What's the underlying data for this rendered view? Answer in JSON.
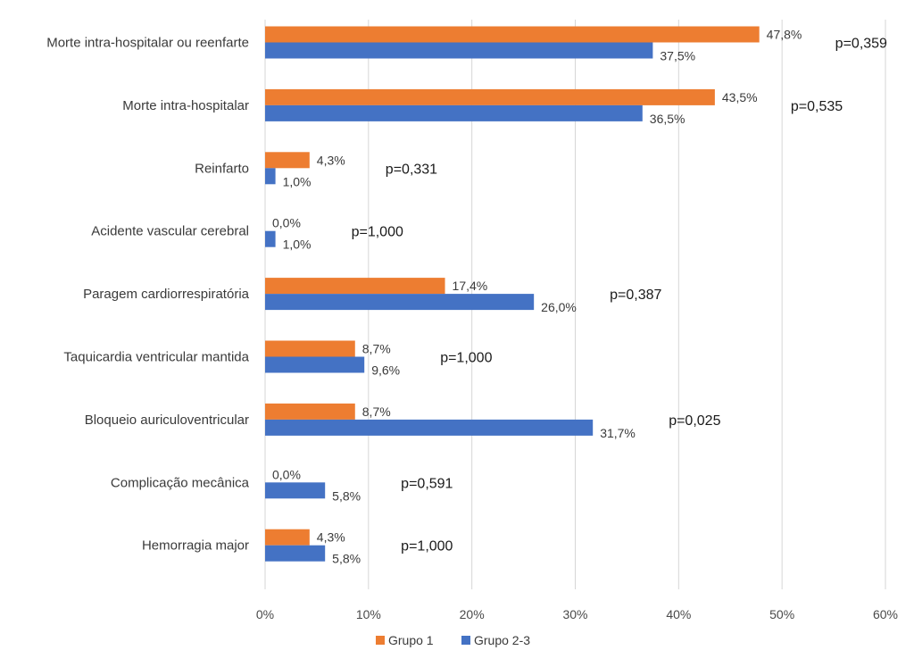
{
  "chart_data": {
    "type": "bar",
    "orientation": "horizontal",
    "categories": [
      "Morte intra-hospitalar ou reenfarte",
      "Morte intra-hospitalar",
      "Reinfarto",
      "Acidente vascular cerebral",
      "Paragem cardiorrespiratória",
      "Taquicardia ventricular mantida",
      "Bloqueio auriculoventricular",
      "Complicação mecânica",
      "Hemorragia major"
    ],
    "series": [
      {
        "name": "Grupo 1",
        "color": "#ed7d31",
        "values": [
          47.8,
          43.5,
          4.3,
          0.0,
          17.4,
          8.7,
          8.7,
          0.0,
          4.3
        ],
        "labels": [
          "47,8%",
          "43,5%",
          "4,3%",
          "0,0%",
          "17,4%",
          "8,7%",
          "8,7%",
          "0,0%",
          "4,3%"
        ]
      },
      {
        "name": "Grupo 2-3",
        "color": "#4472c4",
        "values": [
          37.5,
          36.5,
          1.0,
          1.0,
          26.0,
          9.6,
          31.7,
          5.8,
          5.8
        ],
        "labels": [
          "37,5%",
          "36,5%",
          "1,0%",
          "1,0%",
          "26,0%",
          "9,6%",
          "31,7%",
          "5,8%",
          "5,8%"
        ]
      }
    ],
    "p_values": [
      "p=0,359",
      "p=0,535",
      "p=0,331",
      "p=1,000",
      "p=0,387",
      "p=1,000",
      "p=0,025",
      "p=0,591",
      "p=1,000"
    ],
    "x_axis": {
      "min": 0,
      "max": 60,
      "ticks": [
        0,
        10,
        20,
        30,
        40,
        50,
        60
      ],
      "tick_labels": [
        "0%",
        "10%",
        "20%",
        "30%",
        "40%",
        "50%",
        "60%"
      ]
    },
    "gridlines": true,
    "legend_position": "bottom",
    "title": "",
    "xlabel": "",
    "ylabel": ""
  }
}
